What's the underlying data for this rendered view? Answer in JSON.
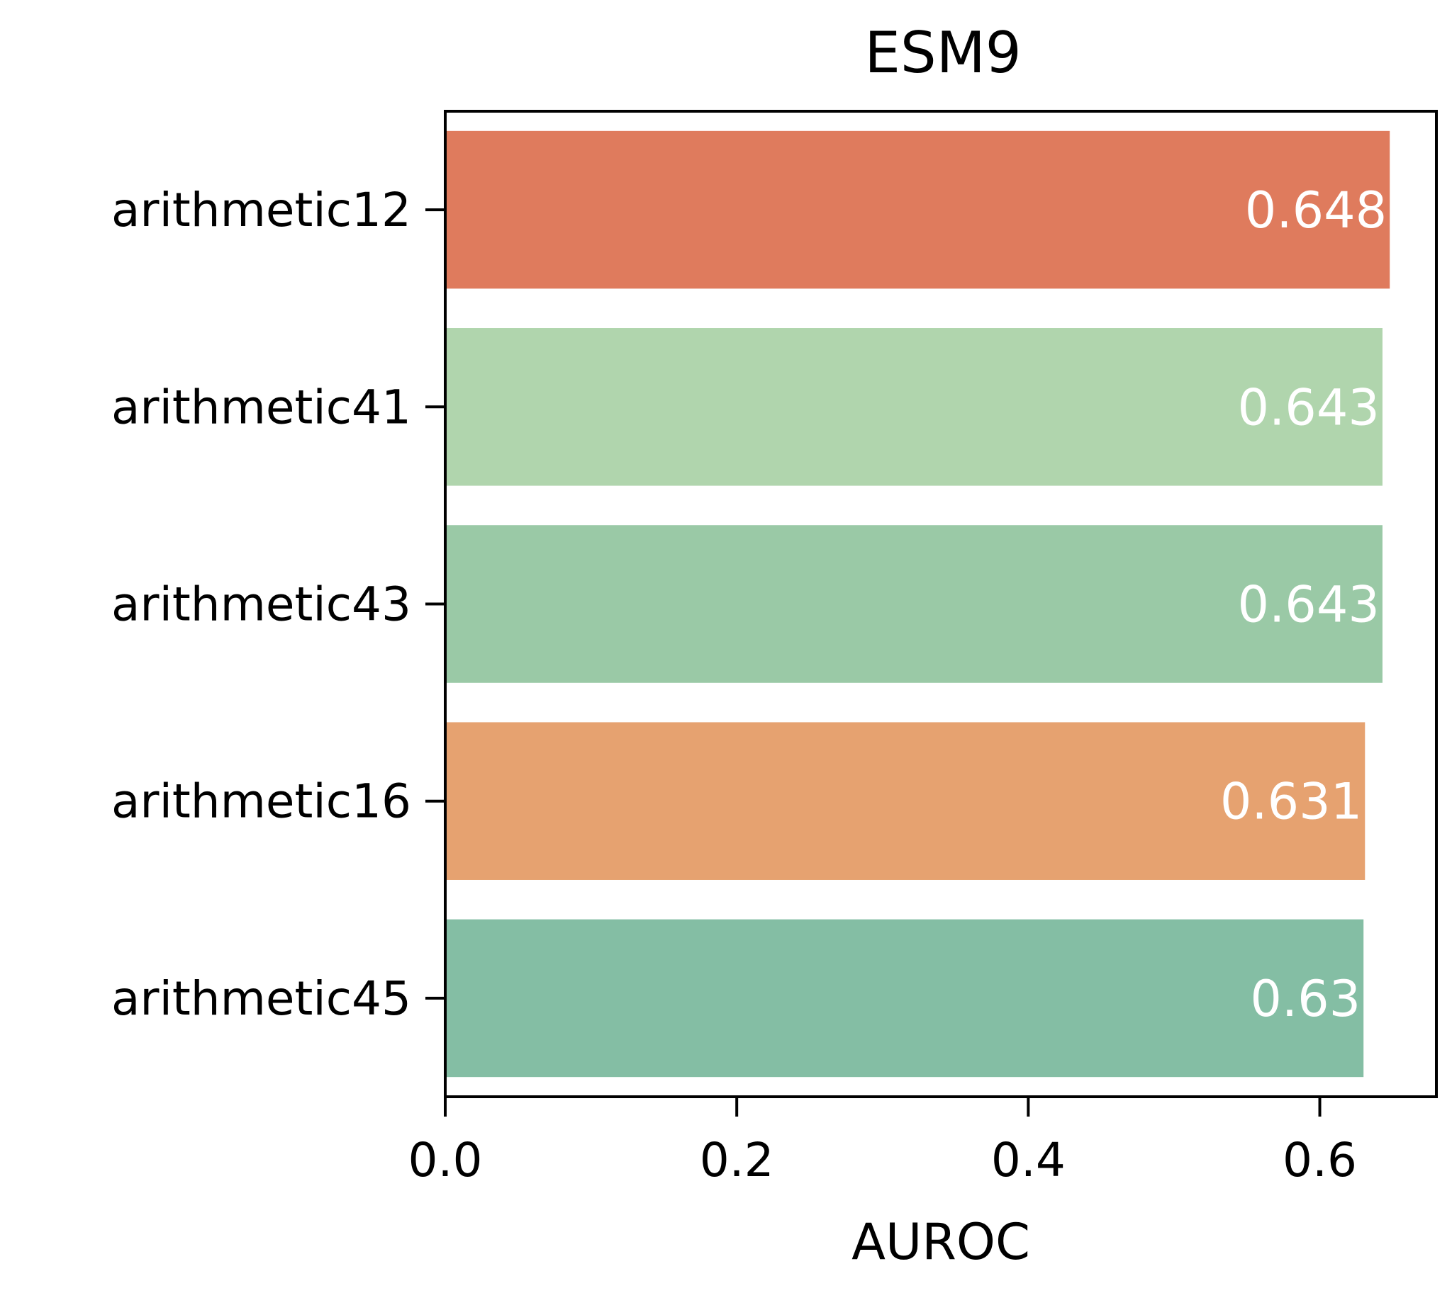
{
  "chart_data": {
    "type": "bar",
    "orientation": "horizontal",
    "title": "ESM9",
    "xlabel": "AUROC",
    "ylabel": "",
    "categories": [
      "arithmetic12",
      "arithmetic41",
      "arithmetic43",
      "arithmetic16",
      "arithmetic45"
    ],
    "values": [
      0.648,
      0.643,
      0.643,
      0.631,
      0.63
    ],
    "value_labels": [
      "0.648",
      "0.643",
      "0.643",
      "0.631",
      "0.63"
    ],
    "colors": [
      "#df7b5d",
      "#b0d5ad",
      "#9ac9a6",
      "#e6a270",
      "#84bea4"
    ],
    "xlim": [
      0,
      0.68
    ],
    "xticks": [
      0.0,
      0.2,
      0.4,
      0.6
    ],
    "xtick_labels": [
      "0.0",
      "0.2",
      "0.4",
      "0.6"
    ],
    "grid": false,
    "legend": "none"
  }
}
